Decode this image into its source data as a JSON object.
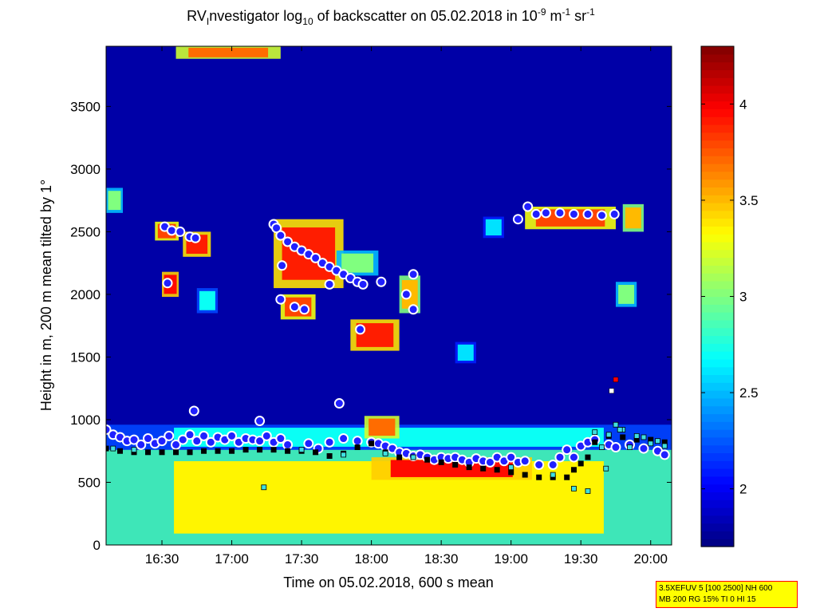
{
  "title": {
    "prefix": "RV",
    "sub1": "I",
    "mid": "nvestigator log",
    "sub2": "10",
    "mid2": " of backscatter on 05.02.2018 in 10",
    "sup1": "-9",
    "unit1": " m",
    "sup2": "-1",
    "unit2": " sr",
    "sup3": "-1"
  },
  "info_box": {
    "line1": "3.5XEFUV 5 [100 2500] NH 600",
    "line2": "MB 200 RG 15% TI 0 HI 15"
  },
  "chart_data": {
    "type": "heatmap",
    "xlabel": "Time on 05.02.2018, 600 s mean",
    "ylabel": "Height in m, 200 m mean tilted by 1°",
    "xlim": [
      16.1,
      20.15
    ],
    "ylim": [
      0,
      3980
    ],
    "xticks": [
      {
        "value": 16.5,
        "label": "16:30"
      },
      {
        "value": 17.0,
        "label": "17:00"
      },
      {
        "value": 17.5,
        "label": "17:30"
      },
      {
        "value": 18.0,
        "label": "18:00"
      },
      {
        "value": 18.5,
        "label": "18:30"
      },
      {
        "value": 19.0,
        "label": "19:00"
      },
      {
        "value": 19.5,
        "label": "19:30"
      },
      {
        "value": 20.0,
        "label": "20:00"
      }
    ],
    "yticks": [
      {
        "value": 0,
        "label": "0"
      },
      {
        "value": 500,
        "label": "500"
      },
      {
        "value": 1000,
        "label": "1000"
      },
      {
        "value": 1500,
        "label": "1500"
      },
      {
        "value": 2000,
        "label": "2000"
      },
      {
        "value": 2500,
        "label": "2500"
      },
      {
        "value": 3000,
        "label": "3000"
      },
      {
        "value": 3500,
        "label": "3500"
      }
    ],
    "colorbar": {
      "range": [
        1.7,
        4.3
      ],
      "ticks": [
        {
          "value": 2,
          "label": "2"
        },
        {
          "value": 2.5,
          "label": "2.5"
        },
        {
          "value": 3,
          "label": "3"
        },
        {
          "value": 3.5,
          "label": "3.5"
        },
        {
          "value": 4,
          "label": "4"
        }
      ],
      "colormap": "jet"
    },
    "colors": {
      "background_value": 1.8,
      "boundary_layer_value": 3.3,
      "aerosol_top_value": 2.6,
      "marker_cloud_base": "#ffffff",
      "marker_cloud_edge": "#2020ff",
      "marker_mlh_fill": "#000000",
      "marker_sq_fill": "#40e0e0"
    },
    "regions": [
      {
        "x0": 16.1,
        "x1": 20.15,
        "y0": 0,
        "y1": 760,
        "value": 3.35,
        "label": "boundary-layer"
      },
      {
        "x0": 16.1,
        "x1": 20.15,
        "y0": 760,
        "y1": 960,
        "value": 2.7,
        "label": "entrainment-zone"
      },
      {
        "x0": 18.0,
        "x1": 19.15,
        "y0": 520,
        "y1": 700,
        "value": 3.95,
        "label": "dense-layer"
      },
      {
        "x0": 16.6,
        "x1": 17.35,
        "y0": 3880,
        "y1": 3980,
        "value": 3.7,
        "label": "top-cloud"
      },
      {
        "x0": 16.45,
        "x1": 16.62,
        "y0": 2430,
        "y1": 2580,
        "value": 3.8,
        "label": "cloud-a"
      },
      {
        "x0": 16.65,
        "x1": 16.85,
        "y0": 2300,
        "y1": 2500,
        "value": 3.9,
        "label": "cloud-b"
      },
      {
        "x0": 16.5,
        "x1": 16.62,
        "y0": 1980,
        "y1": 2180,
        "value": 3.95,
        "label": "cloud-c"
      },
      {
        "x0": 16.75,
        "x1": 16.9,
        "y0": 1850,
        "y1": 2050,
        "value": 2.7,
        "label": "aerosol-d"
      },
      {
        "x0": 16.1,
        "x1": 16.22,
        "y0": 2650,
        "y1": 2850,
        "value": 3.0,
        "label": "aerosol-e"
      },
      {
        "x0": 17.3,
        "x1": 17.8,
        "y0": 2050,
        "y1": 2600,
        "value": 3.9,
        "label": "cloud-f"
      },
      {
        "x0": 17.35,
        "x1": 17.6,
        "y0": 1800,
        "y1": 2000,
        "value": 3.8,
        "label": "cloud-g"
      },
      {
        "x0": 17.75,
        "x1": 18.05,
        "y0": 2150,
        "y1": 2350,
        "value": 3.0,
        "label": "aerosol-h"
      },
      {
        "x0": 17.85,
        "x1": 18.2,
        "y0": 1550,
        "y1": 1800,
        "value": 3.9,
        "label": "cloud-i"
      },
      {
        "x0": 18.2,
        "x1": 18.35,
        "y0": 1850,
        "y1": 2150,
        "value": 3.5,
        "label": "cloud-j"
      },
      {
        "x0": 18.6,
        "x1": 18.75,
        "y0": 1450,
        "y1": 1620,
        "value": 2.6,
        "label": "aerosol-k"
      },
      {
        "x0": 18.8,
        "x1": 18.95,
        "y0": 2450,
        "y1": 2620,
        "value": 2.6,
        "label": "aerosol-l"
      },
      {
        "x0": 19.1,
        "x1": 19.75,
        "y0": 2520,
        "y1": 2700,
        "value": 3.8,
        "label": "cloud-m"
      },
      {
        "x0": 19.8,
        "x1": 19.95,
        "y0": 2500,
        "y1": 2720,
        "value": 3.5,
        "label": "cloud-n"
      },
      {
        "x0": 19.75,
        "x1": 19.9,
        "y0": 1900,
        "y1": 2100,
        "value": 3.0,
        "label": "aerosol-o"
      },
      {
        "x0": 17.95,
        "x1": 18.2,
        "y0": 850,
        "y1": 1030,
        "value": 3.7,
        "label": "bl-bump"
      }
    ],
    "series": [
      {
        "name": "",
        "marker": "circle",
        "points": [
          [
            16.52,
            2540
          ],
          [
            16.57,
            2510
          ],
          [
            16.63,
            2500
          ],
          [
            16.7,
            2460
          ],
          [
            16.74,
            2450
          ],
          [
            16.54,
            2090
          ],
          [
            17.3,
            2560
          ],
          [
            17.32,
            2530
          ],
          [
            17.35,
            2470
          ],
          [
            17.4,
            2420
          ],
          [
            17.45,
            2380
          ],
          [
            17.5,
            2350
          ],
          [
            17.55,
            2320
          ],
          [
            17.6,
            2290
          ],
          [
            17.65,
            2250
          ],
          [
            17.7,
            2220
          ],
          [
            17.75,
            2190
          ],
          [
            17.8,
            2160
          ],
          [
            17.85,
            2130
          ],
          [
            17.9,
            2100
          ],
          [
            17.94,
            2080
          ],
          [
            18.07,
            2100
          ],
          [
            17.36,
            2230
          ],
          [
            17.35,
            1960
          ],
          [
            17.45,
            1900
          ],
          [
            17.52,
            1880
          ],
          [
            17.7,
            2080
          ],
          [
            17.92,
            1720
          ],
          [
            18.25,
            2000
          ],
          [
            18.3,
            2160
          ],
          [
            18.3,
            1880
          ],
          [
            19.05,
            2600
          ],
          [
            19.12,
            2700
          ],
          [
            19.18,
            2640
          ],
          [
            19.25,
            2650
          ],
          [
            19.35,
            2650
          ],
          [
            19.45,
            2640
          ],
          [
            19.55,
            2640
          ],
          [
            19.65,
            2630
          ],
          [
            19.74,
            2640
          ],
          [
            16.73,
            1070
          ],
          [
            17.2,
            990
          ],
          [
            17.77,
            1130
          ]
        ]
      },
      {
        "name": "",
        "marker": "circle",
        "points": [
          [
            16.1,
            920
          ],
          [
            16.15,
            880
          ],
          [
            16.2,
            860
          ],
          [
            16.25,
            830
          ],
          [
            16.3,
            840
          ],
          [
            16.35,
            800
          ],
          [
            16.4,
            850
          ],
          [
            16.45,
            810
          ],
          [
            16.5,
            830
          ],
          [
            16.55,
            870
          ],
          [
            16.6,
            800
          ],
          [
            16.65,
            840
          ],
          [
            16.7,
            880
          ],
          [
            16.75,
            830
          ],
          [
            16.8,
            870
          ],
          [
            16.85,
            820
          ],
          [
            16.9,
            860
          ],
          [
            16.95,
            840
          ],
          [
            17.0,
            870
          ],
          [
            17.05,
            820
          ],
          [
            17.1,
            850
          ],
          [
            17.15,
            840
          ],
          [
            17.2,
            830
          ],
          [
            17.25,
            870
          ],
          [
            17.3,
            820
          ],
          [
            17.35,
            850
          ],
          [
            17.4,
            800
          ],
          [
            17.55,
            810
          ],
          [
            17.62,
            770
          ],
          [
            17.7,
            820
          ],
          [
            17.8,
            850
          ],
          [
            17.9,
            830
          ],
          [
            18.0,
            820
          ],
          [
            18.05,
            810
          ],
          [
            18.1,
            790
          ],
          [
            18.15,
            770
          ],
          [
            18.2,
            740
          ],
          [
            18.25,
            730
          ],
          [
            18.3,
            710
          ],
          [
            18.35,
            720
          ],
          [
            18.4,
            700
          ],
          [
            18.45,
            680
          ],
          [
            18.5,
            700
          ],
          [
            18.55,
            690
          ],
          [
            18.6,
            700
          ],
          [
            18.65,
            680
          ],
          [
            18.7,
            660
          ],
          [
            18.75,
            690
          ],
          [
            18.8,
            670
          ],
          [
            18.85,
            660
          ],
          [
            18.9,
            700
          ],
          [
            18.95,
            670
          ],
          [
            19.0,
            700
          ],
          [
            19.05,
            660
          ],
          [
            19.1,
            670
          ],
          [
            19.2,
            640
          ],
          [
            19.3,
            640
          ],
          [
            19.35,
            700
          ],
          [
            19.4,
            760
          ],
          [
            19.45,
            700
          ],
          [
            19.5,
            790
          ],
          [
            19.55,
            820
          ],
          [
            19.6,
            840
          ],
          [
            19.7,
            800
          ],
          [
            19.75,
            780
          ],
          [
            19.85,
            800
          ],
          [
            19.95,
            770
          ],
          [
            20.05,
            750
          ],
          [
            20.1,
            720
          ]
        ]
      },
      {
        "name": "",
        "marker": "square-black",
        "points": [
          [
            16.1,
            770
          ],
          [
            16.2,
            750
          ],
          [
            16.3,
            740
          ],
          [
            16.4,
            740
          ],
          [
            16.5,
            740
          ],
          [
            16.6,
            740
          ],
          [
            16.7,
            740
          ],
          [
            16.8,
            750
          ],
          [
            16.9,
            750
          ],
          [
            17.0,
            750
          ],
          [
            17.1,
            760
          ],
          [
            17.2,
            760
          ],
          [
            17.3,
            760
          ],
          [
            17.4,
            750
          ],
          [
            17.5,
            750
          ],
          [
            17.6,
            740
          ],
          [
            17.7,
            710
          ],
          [
            17.8,
            730
          ],
          [
            17.9,
            780
          ],
          [
            18.0,
            810
          ],
          [
            18.1,
            740
          ],
          [
            18.2,
            700
          ],
          [
            18.3,
            700
          ],
          [
            18.4,
            680
          ],
          [
            18.5,
            660
          ],
          [
            18.6,
            640
          ],
          [
            18.7,
            620
          ],
          [
            18.8,
            610
          ],
          [
            18.9,
            600
          ],
          [
            19.0,
            580
          ],
          [
            19.1,
            560
          ],
          [
            19.2,
            540
          ],
          [
            19.3,
            540
          ],
          [
            19.4,
            540
          ],
          [
            19.45,
            600
          ],
          [
            19.5,
            650
          ],
          [
            19.55,
            700
          ],
          [
            19.6,
            820
          ],
          [
            19.7,
            870
          ],
          [
            19.8,
            860
          ],
          [
            19.9,
            840
          ],
          [
            20.0,
            840
          ],
          [
            20.1,
            820
          ]
        ]
      },
      {
        "name": "",
        "marker": "square-cyan",
        "points": [
          [
            16.15,
            770
          ],
          [
            16.3,
            760
          ],
          [
            17.23,
            460
          ],
          [
            17.5,
            760
          ],
          [
            17.8,
            720
          ],
          [
            18.1,
            730
          ],
          [
            18.3,
            700
          ],
          [
            19.0,
            620
          ],
          [
            19.3,
            560
          ],
          [
            19.45,
            450
          ],
          [
            19.55,
            430
          ],
          [
            19.6,
            900
          ],
          [
            19.65,
            780
          ],
          [
            19.7,
            880
          ],
          [
            19.75,
            960
          ],
          [
            19.8,
            920
          ],
          [
            19.85,
            780
          ],
          [
            19.9,
            870
          ],
          [
            19.95,
            860
          ],
          [
            20.0,
            810
          ],
          [
            20.05,
            830
          ],
          [
            20.1,
            790
          ],
          [
            19.68,
            610
          ],
          [
            19.78,
            920
          ]
        ]
      },
      {
        "name": "",
        "marker": "square-special",
        "points": [
          [
            19.72,
            1230,
            "#ffffff"
          ],
          [
            19.75,
            1320,
            "#ff0000"
          ]
        ]
      }
    ]
  }
}
